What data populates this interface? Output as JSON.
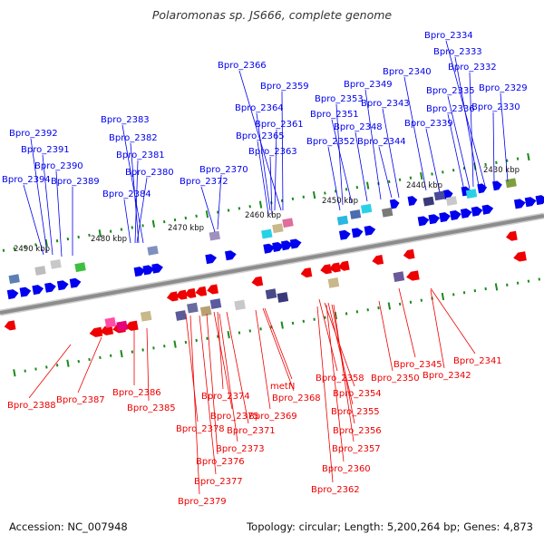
{
  "title": "Polaromonas sp. JS666, complete genome",
  "footer": {
    "accession": "Accession: NC_007948",
    "stats": "Topology: circular; Length: 5,200,264 bp; Genes: 4,873"
  },
  "colors": {
    "forward_strand": "#0000ee",
    "reverse_strand": "#ee0000",
    "backbone": "#8c8c8c",
    "tick": "#1a8a1a"
  },
  "scale_labels": [
    "2430 kbp",
    "2440 kbp",
    "2450 kbp",
    "2460 kbp",
    "2470 kbp",
    "2480 kbp",
    "2490 kbp"
  ],
  "forward_genes": [
    "Bpro_2334",
    "Bpro_2333",
    "Bpro_2332",
    "Bpro_2329",
    "Bpro_2335",
    "Bpro_2336",
    "Bpro_2330",
    "Bpro_2340",
    "Bpro_2339",
    "Bpro_2349",
    "Bpro_2343",
    "Bpro_2348",
    "Bpro_2344",
    "Bpro_2353",
    "Bpro_2351",
    "Bpro_2352",
    "Bpro_2366",
    "Bpro_2359",
    "Bpro_2364",
    "Bpro_2361",
    "Bpro_2365",
    "Bpro_2363",
    "Bpro_2370",
    "Bpro_2372",
    "Bpro_2383",
    "Bpro_2382",
    "Bpro_2381",
    "Bpro_2380",
    "Bpro_2384",
    "Bpro_2392",
    "Bpro_2391",
    "Bpro_2390",
    "Bpro_2394",
    "Bpro_2389"
  ],
  "reverse_genes": [
    "Bpro_2341",
    "Bpro_2345",
    "Bpro_2342",
    "Bpro_2350",
    "Bpro_2358",
    "Bpro_2354",
    "Bpro_2355",
    "Bpro_2356",
    "Bpro_2357",
    "Bpro_2360",
    "Bpro_2362",
    "metN",
    "Bpro_2368",
    "Bpro_2369",
    "Bpro_2374",
    "Bpro_2375",
    "Bpro_2371",
    "Bpro_2378",
    "Bpro_2373",
    "Bpro_2376",
    "Bpro_2377",
    "Bpro_2379",
    "Bpro_2386",
    "Bpro_2385",
    "Bpro_2387",
    "Bpro_2388"
  ]
}
